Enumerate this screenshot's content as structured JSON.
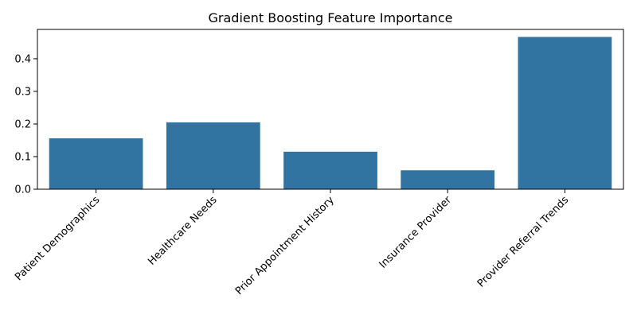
{
  "chart_data": {
    "type": "bar",
    "title": "Gradient Boosting Feature Importance",
    "xlabel": "",
    "ylabel": "",
    "categories": [
      "Patient Demographics",
      "Healthcare Needs",
      "Prior Appointment History",
      "Insurance Provider",
      "Provider Referral Trends"
    ],
    "values": [
      0.156,
      0.205,
      0.115,
      0.058,
      0.467
    ],
    "ylim": [
      0,
      0.49
    ],
    "yticks": [
      0.0,
      0.1,
      0.2,
      0.3,
      0.4
    ],
    "ytick_labels": [
      "0.0",
      "0.1",
      "0.2",
      "0.3",
      "0.4"
    ],
    "bar_color": "#3274a1",
    "grid": false,
    "legend": "none"
  }
}
